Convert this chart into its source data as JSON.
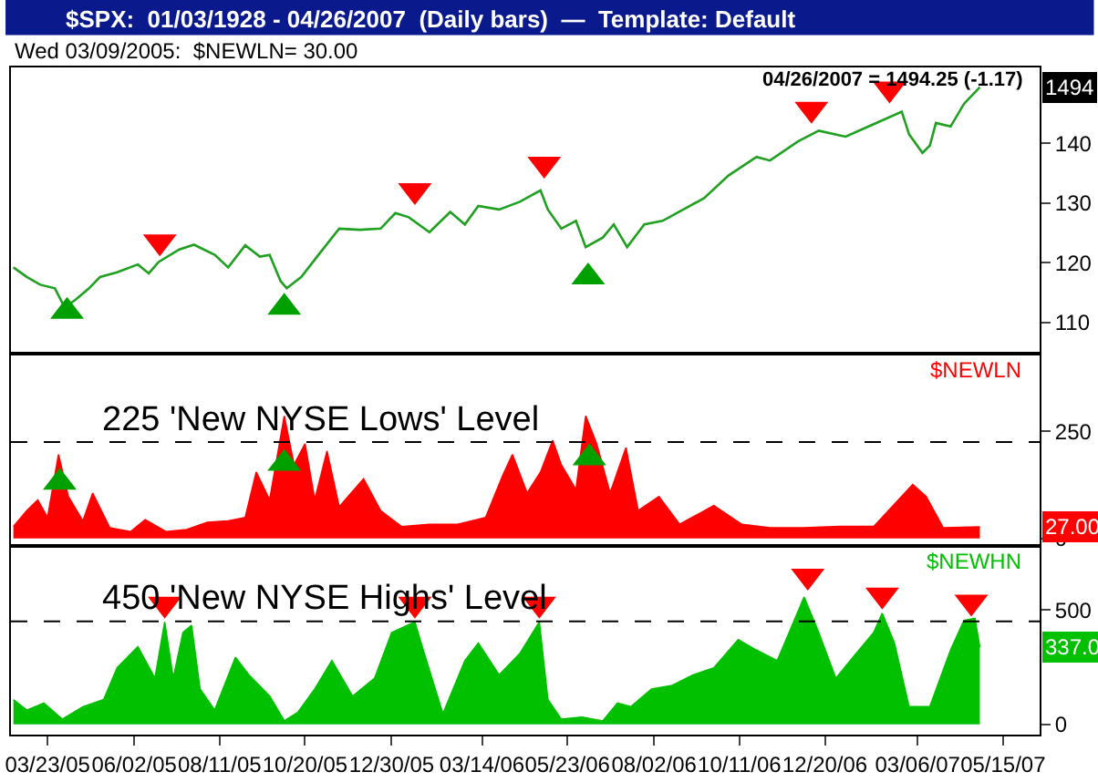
{
  "chart_data": [
    {
      "type": "line",
      "title": "$SPX:  01/03/1928 - 04/26/2007  (Daily bars)  —  Template: Default",
      "subtitle": "Wed 03/09/2005:  $NEWLN= 30.00",
      "annotations": [
        "04/26/2007 = 1494.25 (-1.17)",
        {
          "text": "1494",
          "x": "2007-04-26",
          "y": 149.4
        }
      ],
      "xlim": [
        "2005-02-21",
        "2007-06-14"
      ],
      "ylim": [
        104.8,
        152.7
      ],
      "yticks": [
        110,
        120,
        130,
        140
      ],
      "tick_labels": "y",
      "legend": false,
      "grid": false,
      "series": [
        {
          "color": "#20a020",
          "x": [
            "2005-02-23",
            "2005-03-06",
            "2005-03-17",
            "2005-03-29",
            "2005-04-06",
            "2005-04-15",
            "2005-04-26",
            "2005-05-05",
            "2005-05-19",
            "2005-06-05",
            "2005-06-14",
            "2005-06-22",
            "2005-07-09",
            "2005-07-21",
            "2005-08-07",
            "2005-08-18",
            "2005-09-01",
            "2005-09-13",
            "2005-09-21",
            "2005-09-30",
            "2005-10-05",
            "2005-10-17",
            "2005-10-31",
            "2005-11-17",
            "2005-12-04",
            "2005-12-21",
            "2006-01-02",
            "2006-01-13",
            "2006-01-30",
            "2006-02-16",
            "2006-02-28",
            "2006-03-11",
            "2006-03-28",
            "2006-04-14",
            "2006-05-01",
            "2006-05-07",
            "2006-05-18",
            "2006-05-30",
            "2006-06-07",
            "2006-06-21",
            "2006-06-30",
            "2006-07-11",
            "2006-07-25",
            "2006-08-09",
            "2006-08-26",
            "2006-09-12",
            "2006-10-02",
            "2006-10-25",
            "2006-11-05",
            "2006-11-28",
            "2006-12-15",
            "2007-01-06",
            "2007-01-29",
            "2007-02-21",
            "2007-02-27",
            "2007-03-10",
            "2007-03-16",
            "2007-03-21",
            "2007-04-02",
            "2007-04-13",
            "2007-04-26"
          ],
          "values": [
            119.2,
            117.6,
            116.3,
            115.7,
            112.5,
            113.8,
            115.7,
            117.6,
            118.4,
            119.7,
            118.2,
            120.1,
            122.2,
            123.0,
            121.3,
            119.2,
            122.9,
            121.0,
            121.3,
            116.9,
            115.7,
            117.6,
            121.3,
            125.7,
            125.5,
            125.7,
            128.3,
            127.6,
            125.1,
            128.5,
            126.4,
            129.5,
            128.9,
            130.2,
            132.1,
            128.9,
            125.7,
            127.0,
            122.6,
            124.2,
            126.4,
            122.6,
            126.4,
            127.0,
            128.9,
            130.8,
            134.6,
            137.7,
            137.1,
            140.3,
            142.1,
            141.1,
            143.2,
            145.3,
            141.5,
            138.4,
            139.6,
            143.4,
            142.8,
            146.6,
            149.4
          ]
        },
        {
          "type": "scatter",
          "marker": "triangle",
          "color": "#00a000",
          "x": [
            "2005-04-08",
            "2005-10-03",
            "2006-06-09"
          ],
          "values": [
            111.8,
            112.5,
            117.6
          ]
        },
        {
          "type": "scatter",
          "marker": "triangle-down",
          "color": "#ff0000",
          "x": [
            "2005-06-23",
            "2006-01-18",
            "2006-05-04",
            "2006-12-09",
            "2007-02-11"
          ],
          "values": [
            123.5,
            132.1,
            136.5,
            145.7,
            149.1
          ]
        }
      ]
    },
    {
      "type": "area",
      "xlim": [
        "2005-02-21",
        "2007-06-14"
      ],
      "ylim": [
        -17,
        432
      ],
      "yticks": [
        0,
        250
      ],
      "tick_labels": "y",
      "legend": false,
      "grid": false,
      "annotations": [
        {
          "text": "27.00",
          "x": "2007-04-26",
          "y": 27
        }
      ],
      "ref_lines": [
        {
          "axis": "y",
          "value": 225,
          "label": "225 'New NYSE Lows' Level",
          "color": "#000000",
          "line_style": "dashed"
        }
      ],
      "series": [
        {
          "name": "$NEWLN",
          "color": "#ff0000",
          "x": [
            "2005-02-23",
            "2005-03-06",
            "2005-03-15",
            "2005-03-23",
            "2005-04-01",
            "2005-04-09",
            "2005-04-21",
            "2005-04-29",
            "2005-05-13",
            "2005-05-30",
            "2005-06-11",
            "2005-06-28",
            "2005-07-15",
            "2005-08-01",
            "2005-08-18",
            "2005-09-01",
            "2005-09-10",
            "2005-09-21",
            "2005-10-03",
            "2005-10-11",
            "2005-10-20",
            "2005-10-28",
            "2005-11-07",
            "2005-11-17",
            "2005-12-07",
            "2005-12-21",
            "2006-01-07",
            "2006-01-30",
            "2006-02-22",
            "2006-03-17",
            "2006-03-31",
            "2006-04-08",
            "2006-04-20",
            "2006-05-01",
            "2006-05-11",
            "2006-05-18",
            "2006-05-30",
            "2006-06-07",
            "2006-06-16",
            "2006-06-27",
            "2006-07-10",
            "2006-07-20",
            "2006-08-06",
            "2006-08-23",
            "2006-09-20",
            "2006-10-13",
            "2006-11-05",
            "2006-12-03",
            "2007-01-01",
            "2007-01-29",
            "2007-03-02",
            "2007-03-13",
            "2007-03-27",
            "2007-04-26"
          ],
          "values": [
            28,
            65,
            90,
            49,
            196,
            98,
            41,
            106,
            25,
            16,
            44,
            16,
            21,
            38,
            41,
            49,
            155,
            90,
            286,
            172,
            221,
            90,
            204,
            74,
            139,
            65,
            28,
            33,
            33,
            49,
            147,
            196,
            106,
            155,
            229,
            172,
            114,
            286,
            221,
            106,
            212,
            65,
            98,
            33,
            77,
            33,
            25,
            25,
            28,
            28,
            126,
            98,
            25,
            27
          ]
        },
        {
          "type": "scatter",
          "marker": "triangle",
          "color": "#00a000",
          "x": [
            "2005-04-02",
            "2005-10-03",
            "2006-06-10"
          ],
          "values": [
            131,
            175,
            188
          ]
        }
      ]
    },
    {
      "type": "area",
      "xlim": [
        "2005-02-21",
        "2007-06-14"
      ],
      "ylim": [
        -45,
        780
      ],
      "yticks": [
        0,
        500
      ],
      "legend": false,
      "grid": false,
      "xticks": [
        {
          "value": "2005-03-23",
          "label": "03/23/05"
        },
        {
          "value": "2005-06-02",
          "label": "06/02/05"
        },
        {
          "value": "2005-08-11",
          "label": "08/11/05"
        },
        {
          "value": "2005-10-20",
          "label": "10/20/05"
        },
        {
          "value": "2005-12-30",
          "label": "12/30/05"
        },
        {
          "value": "2006-03-14",
          "label": "03/14/06"
        },
        {
          "value": "2006-05-23",
          "label": "05/23/06"
        },
        {
          "value": "2006-08-02",
          "label": "08/02/06"
        },
        {
          "value": "2006-10-11",
          "label": "10/11/06"
        },
        {
          "value": "2006-12-20",
          "label": "12/20/06"
        },
        {
          "value": "2007-03-06",
          "label": "03/06/07"
        },
        {
          "value": "2007-05-15",
          "label": "05/15/07"
        }
      ],
      "annotations": [
        {
          "text": "337.0",
          "x": "2007-04-26",
          "y": 337
        }
      ],
      "ref_lines": [
        {
          "axis": "y",
          "value": 450,
          "label": "450 'New NYSE Highs' Level",
          "color": "#000000",
          "line_style": "dashed"
        }
      ],
      "series": [
        {
          "name": "$NEWHN",
          "color": "#00c000",
          "x": [
            "2005-02-23",
            "2005-03-06",
            "2005-03-20",
            "2005-04-04",
            "2005-04-21",
            "2005-05-08",
            "2005-05-19",
            "2005-06-05",
            "2005-06-19",
            "2005-06-27",
            "2005-07-04",
            "2005-07-12",
            "2005-07-19",
            "2005-07-26",
            "2005-08-07",
            "2005-08-24",
            "2005-09-04",
            "2005-09-21",
            "2005-10-03",
            "2005-10-14",
            "2005-10-28",
            "2005-11-11",
            "2005-11-28",
            "2005-12-16",
            "2005-12-30",
            "2006-01-18",
            "2006-01-24",
            "2006-02-10",
            "2006-02-28",
            "2006-03-11",
            "2006-03-28",
            "2006-04-14",
            "2006-04-30",
            "2006-05-07",
            "2006-05-18",
            "2006-06-04",
            "2006-06-21",
            "2006-07-03",
            "2006-07-14",
            "2006-07-31",
            "2006-08-17",
            "2006-09-03",
            "2006-09-20",
            "2006-10-10",
            "2006-10-25",
            "2006-11-11",
            "2006-12-03",
            "2006-12-15",
            "2006-12-29",
            "2007-01-12",
            "2007-01-29",
            "2007-02-05",
            "2007-02-15",
            "2007-02-27",
            "2007-03-16",
            "2007-04-02",
            "2007-04-13",
            "2007-04-22",
            "2007-04-26"
          ],
          "values": [
            108,
            62,
            93,
            22,
            77,
            108,
            247,
            339,
            201,
            447,
            201,
            401,
            432,
            154,
            62,
            293,
            216,
            123,
            15,
            52,
            154,
            278,
            123,
            201,
            401,
            447,
            339,
            46,
            278,
            355,
            216,
            309,
            447,
            108,
            22,
            31,
            15,
            93,
            77,
            154,
            170,
            216,
            247,
            370,
            324,
            278,
            556,
            401,
            201,
            293,
            401,
            485,
            355,
            77,
            77,
            324,
            454,
            463,
            337
          ]
        },
        {
          "type": "scatter",
          "marker": "triangle-down",
          "color": "#ff0000",
          "x": [
            "2005-06-27",
            "2006-01-18",
            "2006-04-30",
            "2006-12-06",
            "2007-02-05",
            "2007-04-19"
          ],
          "values": [
            525,
            525,
            525,
            648,
            565,
            534
          ]
        }
      ]
    }
  ]
}
